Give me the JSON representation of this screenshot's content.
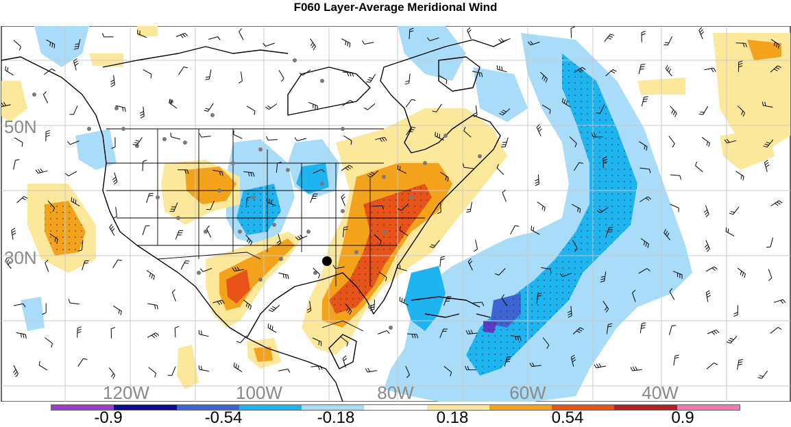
{
  "title": "F060 Layer-Average Meridional Wind",
  "map": {
    "lon_labels": [
      "120W",
      "100W",
      "80W",
      "60W",
      "40W"
    ],
    "lat_labels": [
      "50N",
      "30N"
    ]
  },
  "colorbar": {
    "colors": [
      "#a03ac8",
      "#0a0a8c",
      "#3c64d2",
      "#1eb4f0",
      "#a8dcf8",
      "#ffffff",
      "#fbe89a",
      "#f2a31b",
      "#e8531a",
      "#b02020",
      "#ee7ab0"
    ],
    "tick_labels": [
      "-0.9",
      "-0.54",
      "-0.18",
      "0.18",
      "0.54",
      "0.9"
    ]
  },
  "legend_colors": {
    "pos_light": "#fbe89a",
    "pos_mid": "#f2a31b",
    "pos_strong": "#e8531a",
    "neg_light": "#a8dcf8",
    "neg_mid": "#1eb4f0",
    "neg_strong": "#3c64d2"
  }
}
